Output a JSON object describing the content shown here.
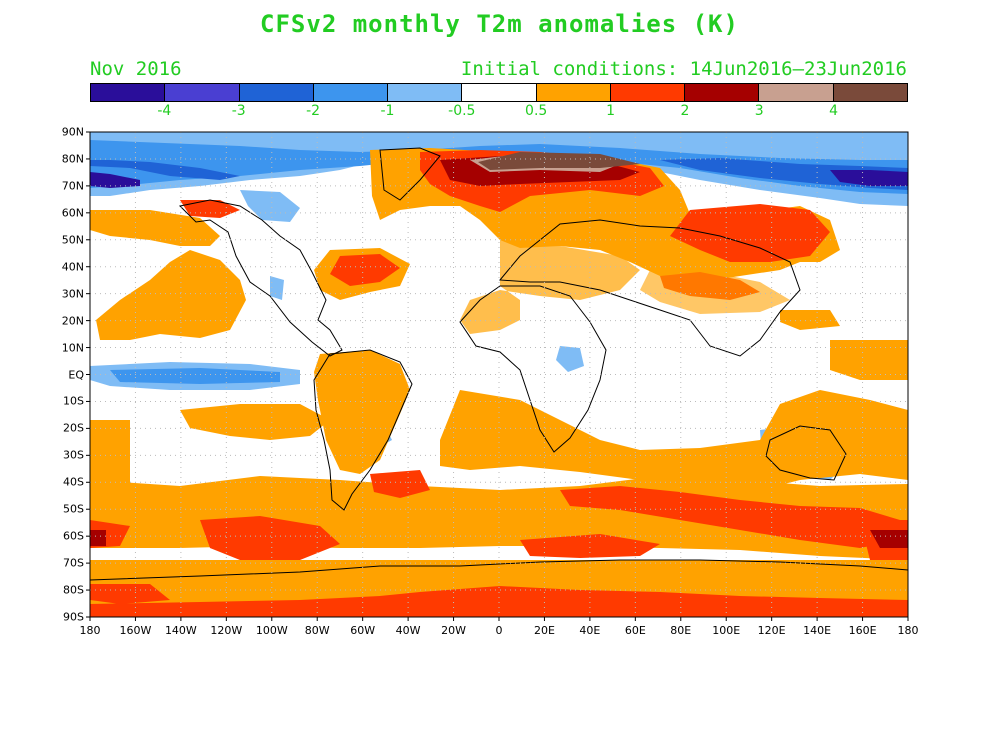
{
  "title": "CFSv2 monthly T2m anomalies (K)",
  "month": "Nov 2016",
  "initial_conditions": "Initial conditions: 14Jun2016–23Jun2016",
  "colorbar": {
    "colors": [
      "#2a0e9a",
      "#4a3fd2",
      "#1f63d6",
      "#3d95ee",
      "#7fbcf5",
      "#ffffff",
      "#ffa200",
      "#ff3a00",
      "#a50000",
      "#c8a090",
      "#7a4a3a"
    ],
    "labels": [
      "-4",
      "-3",
      "-2",
      "-1",
      "-0.5",
      "0.5",
      "1",
      "2",
      "3",
      "4"
    ]
  },
  "map": {
    "lat_labels": [
      "90N",
      "80N",
      "70N",
      "60N",
      "50N",
      "40N",
      "30N",
      "20N",
      "10N",
      "EQ",
      "10S",
      "20S",
      "30S",
      "40S",
      "50S",
      "60S",
      "70S",
      "80S",
      "90S"
    ],
    "lon_labels": [
      "180",
      "160W",
      "140W",
      "120W",
      "100W",
      "80W",
      "60W",
      "40W",
      "20W",
      "0",
      "20E",
      "40E",
      "60E",
      "80E",
      "100E",
      "120E",
      "140E",
      "160E",
      "180"
    ]
  }
}
